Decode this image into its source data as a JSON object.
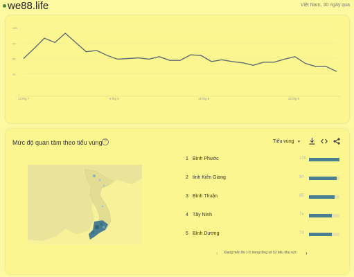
{
  "header": {
    "site": "we88.life",
    "meta": "Việt Nam, 30 ngày qua"
  },
  "timeline": {
    "y_ticks": [
      "100",
      "75",
      "50",
      "25"
    ],
    "x_ticks": [
      "12 thg 7",
      "5 thg 8",
      "18 thg 8",
      "22 thg 8"
    ],
    "chart_data": {
      "type": "line",
      "ylim": [
        0,
        100
      ],
      "values": [
        50,
        66,
        83,
        76,
        91,
        76,
        61,
        63,
        55,
        49,
        50,
        51,
        49,
        53,
        47,
        47,
        56,
        55,
        45,
        48,
        45,
        43,
        39,
        44,
        44,
        49,
        53,
        42,
        37,
        37,
        29
      ],
      "color": "#5f6b73"
    }
  },
  "regions": {
    "title": "Mức độ quan tâm theo tiểu vùng",
    "help_icon": "help-circle-icon",
    "selector": "Tiểu vùng",
    "tools": [
      "download-icon",
      "embed-code-icon",
      "share-icon"
    ],
    "rows": [
      {
        "rank": "1",
        "name": "Bình Phước",
        "value": "100",
        "fraction": 1.0
      },
      {
        "rank": "2",
        "name": "tỉnh Kiên Giang",
        "value": "90",
        "fraction": 0.9
      },
      {
        "rank": "3",
        "name": "Bình Thuận",
        "value": "85",
        "fraction": 0.85
      },
      {
        "rank": "4",
        "name": "Tây Ninh",
        "value": "74",
        "fraction": 0.74
      },
      {
        "rank": "5",
        "name": "Bình Dương",
        "value": "74",
        "fraction": 0.74
      }
    ],
    "pager_text": "Đang hiển thị 1-5 trong tổng số 52 tiểu khu vực",
    "bar_color": "#4a7f93"
  }
}
